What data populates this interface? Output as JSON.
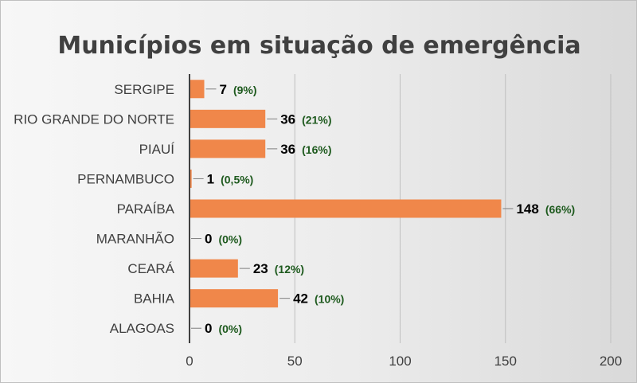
{
  "chart_data": {
    "type": "bar",
    "orientation": "horizontal",
    "title": "Municípios em situação de emergência",
    "categories": [
      "SERGIPE",
      "RIO GRANDE DO NORTE",
      "PIAUÍ",
      "PERNAMBUCO",
      "PARAÍBA",
      "MARANHÃO",
      "CEARÁ",
      "BAHIA",
      "ALAGOAS"
    ],
    "values": [
      7,
      36,
      36,
      1,
      148,
      0,
      23,
      42,
      0
    ],
    "value_labels": [
      "7",
      "36",
      "36",
      "1",
      "148",
      "0",
      "23",
      "42",
      "0"
    ],
    "percent_labels": [
      "(9%)",
      "(21%)",
      "(16%)",
      "(0,5%)",
      "(66%)",
      "(0%)",
      "(12%)",
      "(10%)",
      "(0%)"
    ],
    "xlim": [
      0,
      200
    ],
    "x_ticks": [
      0,
      50,
      100,
      150,
      200
    ],
    "x_tick_labels": [
      "0",
      "50",
      "100",
      "150",
      "200"
    ],
    "grid": true,
    "legend": "none",
    "colors": {
      "bar": "#f0874a",
      "percent_label": "#1e5a1e",
      "value_label": "#000000",
      "gridline": "#bfbfbf",
      "axis": "#404040",
      "title": "#404040"
    }
  }
}
